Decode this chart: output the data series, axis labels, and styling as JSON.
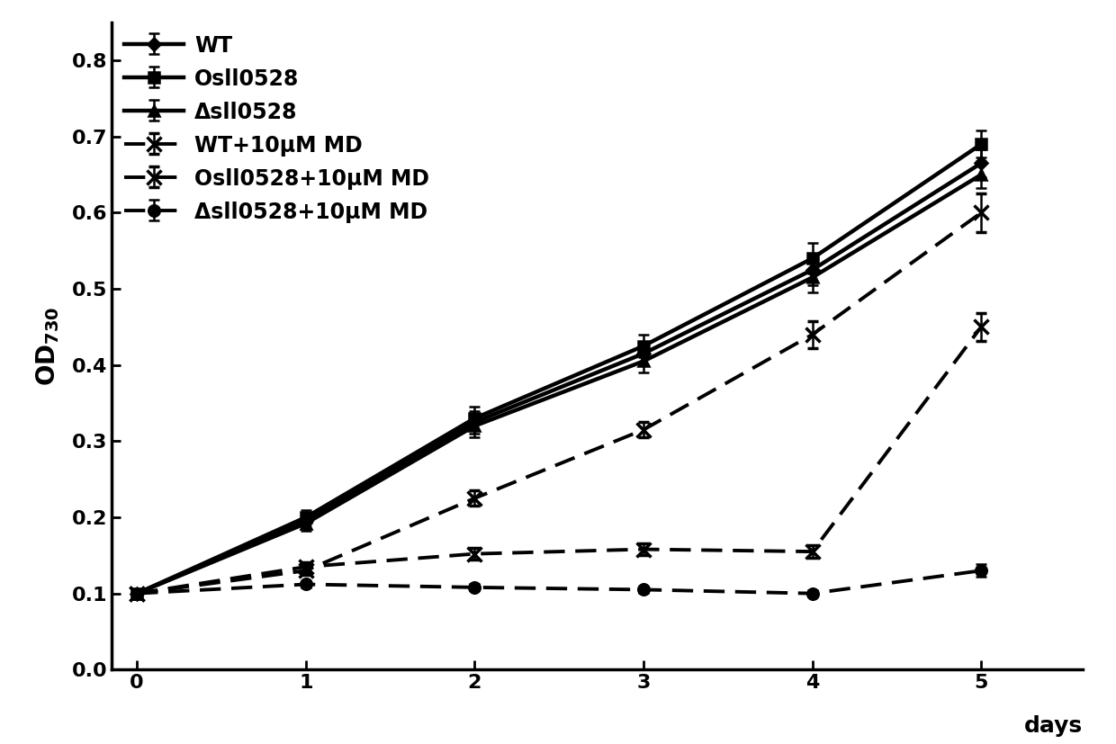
{
  "days": [
    0,
    1,
    2,
    3,
    4,
    5
  ],
  "series": {
    "WT": {
      "y": [
        0.1,
        0.195,
        0.325,
        0.415,
        0.525,
        0.665
      ],
      "yerr": [
        0.004,
        0.01,
        0.015,
        0.015,
        0.02,
        0.018
      ],
      "linestyle": "solid",
      "marker": "D",
      "markersize": 8,
      "label": "WT"
    },
    "Osll0528": {
      "y": [
        0.1,
        0.2,
        0.33,
        0.425,
        0.54,
        0.69
      ],
      "yerr": [
        0.004,
        0.01,
        0.015,
        0.015,
        0.02,
        0.018
      ],
      "linestyle": "solid",
      "marker": "s",
      "markersize": 8,
      "label": "Osll0528"
    },
    "Dsll0528": {
      "y": [
        0.1,
        0.192,
        0.32,
        0.405,
        0.515,
        0.65
      ],
      "yerr": [
        0.004,
        0.01,
        0.015,
        0.015,
        0.02,
        0.018
      ],
      "linestyle": "solid",
      "marker": "^",
      "markersize": 9,
      "label": "Δsll0528"
    },
    "WT_MD": {
      "y": [
        0.1,
        0.13,
        0.225,
        0.315,
        0.44,
        0.6
      ],
      "yerr": [
        0.004,
        0.006,
        0.01,
        0.01,
        0.018,
        0.025
      ],
      "linestyle": "dashed",
      "marker": "x",
      "markersize": 10,
      "label": "WT+10μM MD"
    },
    "Osll0528_MD": {
      "y": [
        0.1,
        0.135,
        0.152,
        0.158,
        0.155,
        0.45
      ],
      "yerr": [
        0.004,
        0.006,
        0.008,
        0.008,
        0.008,
        0.018
      ],
      "linestyle": "dashed",
      "marker": "x",
      "markersize": 10,
      "label": "Osll0528+10μM MD"
    },
    "Dsll0528_MD": {
      "y": [
        0.1,
        0.112,
        0.108,
        0.105,
        0.1,
        0.13
      ],
      "yerr": [
        0.004,
        0.004,
        0.004,
        0.004,
        0.004,
        0.008
      ],
      "linestyle": "dashed",
      "marker": "o",
      "markersize": 9,
      "label": "Δsll0528+10μM MD"
    }
  },
  "xlabel": "days",
  "ylabel": "OD",
  "ylabel_sub": "730",
  "xlim": [
    -0.15,
    5.6
  ],
  "ylim": [
    0,
    0.85
  ],
  "yticks": [
    0,
    0.1,
    0.2,
    0.3,
    0.4,
    0.5,
    0.6,
    0.7,
    0.8
  ],
  "xticks": [
    0,
    1,
    2,
    3,
    4,
    5
  ],
  "color": "black",
  "legend_loc": "upper left",
  "legend_fontsize": 17,
  "tick_fontsize": 16,
  "label_fontsize": 18
}
